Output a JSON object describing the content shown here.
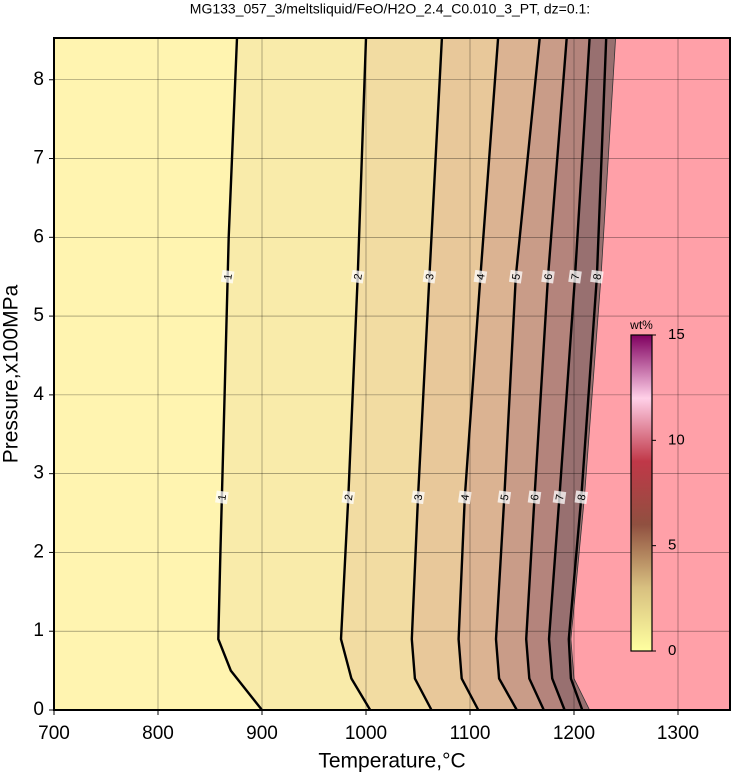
{
  "chart_data": {
    "type": "contour",
    "title": "MG133_057_3/meltsliquid/FeO/H2O_2.4_C0.010_3_PT, dz=0.1:",
    "x_label": "Temperature,°C",
    "y_label": "Pressure,x100MPa",
    "xlim": [
      700,
      1350
    ],
    "ylim": [
      0,
      8.53
    ],
    "xticks": [
      700,
      800,
      900,
      1000,
      1100,
      1200,
      1300
    ],
    "yticks": [
      0,
      1,
      2,
      3,
      4,
      5,
      6,
      7,
      8
    ],
    "grid": true,
    "background_color": "#fff4b0",
    "band_colors": [
      "#f9ebaa",
      "#f2dca2",
      "#e8c89a",
      "#dbb392",
      "#c99c88",
      "#b4847c",
      "#987070"
    ],
    "saturated_color": "#ffa0a8",
    "contours": [
      {
        "level": 1,
        "T": [
          900,
          870,
          858,
          860,
          864,
          868,
          876
        ],
        "P": [
          0,
          0.5,
          0.9,
          2,
          4,
          6,
          8.53
        ]
      },
      {
        "level": 2,
        "T": [
          1004,
          986,
          976,
          983,
          992,
          1000
        ],
        "P": [
          0,
          0.4,
          0.9,
          2.7,
          5.5,
          8.53
        ]
      },
      {
        "level": 3,
        "T": [
          1063,
          1047,
          1044,
          1050,
          1061,
          1073
        ],
        "P": [
          0,
          0.4,
          0.9,
          2.7,
          5.5,
          8.53
        ]
      },
      {
        "level": 4,
        "T": [
          1108,
          1092,
          1089,
          1095,
          1110,
          1127
        ],
        "P": [
          0,
          0.4,
          0.9,
          2.7,
          5.5,
          8.53
        ]
      },
      {
        "level": 5,
        "T": [
          1145,
          1128,
          1125,
          1133,
          1144,
          1167
        ],
        "P": [
          0,
          0.4,
          0.9,
          2.7,
          5.5,
          8.53
        ]
      },
      {
        "level": 6,
        "T": [
          1171,
          1157,
          1154,
          1162,
          1175,
          1193
        ],
        "P": [
          0,
          0.4,
          0.9,
          2.7,
          5.5,
          8.53
        ]
      },
      {
        "level": 7,
        "T": [
          1191,
          1179,
          1176,
          1186,
          1201,
          1215
        ],
        "P": [
          0,
          0.4,
          0.9,
          2.7,
          5.5,
          8.53
        ]
      },
      {
        "level": 8,
        "T": [
          1208,
          1197,
          1195,
          1207,
          1222,
          1231
        ],
        "P": [
          0,
          0.4,
          0.9,
          2.7,
          5.5,
          8.53
        ]
      }
    ],
    "saturation_boundary": {
      "T": [
        1215,
        1200,
        1197,
        1210,
        1226,
        1240
      ],
      "P": [
        0,
        0.4,
        0.9,
        2.7,
        5.5,
        8.53
      ]
    },
    "label_pressures": [
      5.5,
      2.7
    ],
    "colorbar": {
      "label": "wt%",
      "clim": [
        0,
        15
      ],
      "ticks": [
        0,
        5,
        10,
        15
      ],
      "colormap": [
        "#ffffa0",
        "#d8c080",
        "#905040",
        "#c03848",
        "#ffd0e8",
        "#800060"
      ]
    }
  }
}
